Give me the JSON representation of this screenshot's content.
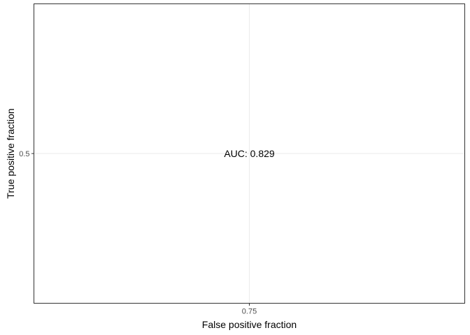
{
  "chart_data": {
    "type": "line",
    "title": "",
    "xlabel": "False positive fraction",
    "ylabel": "True positive fraction",
    "xlim": [
      0.5,
      1.0
    ],
    "ylim": [
      0.0,
      1.0
    ],
    "x_ticks": [
      {
        "value": 0.75,
        "label": "0.75"
      }
    ],
    "y_ticks": [
      {
        "value": 0.5,
        "label": "0.5"
      }
    ],
    "grid": true,
    "annotations": [
      {
        "text": "AUC: 0.829",
        "x": 0.75,
        "y": 0.5
      }
    ],
    "series": []
  },
  "colors": {
    "panel_border": "#333333",
    "grid": "#ebebeb",
    "tick_text": "#4d4d4d",
    "text": "#000000"
  }
}
